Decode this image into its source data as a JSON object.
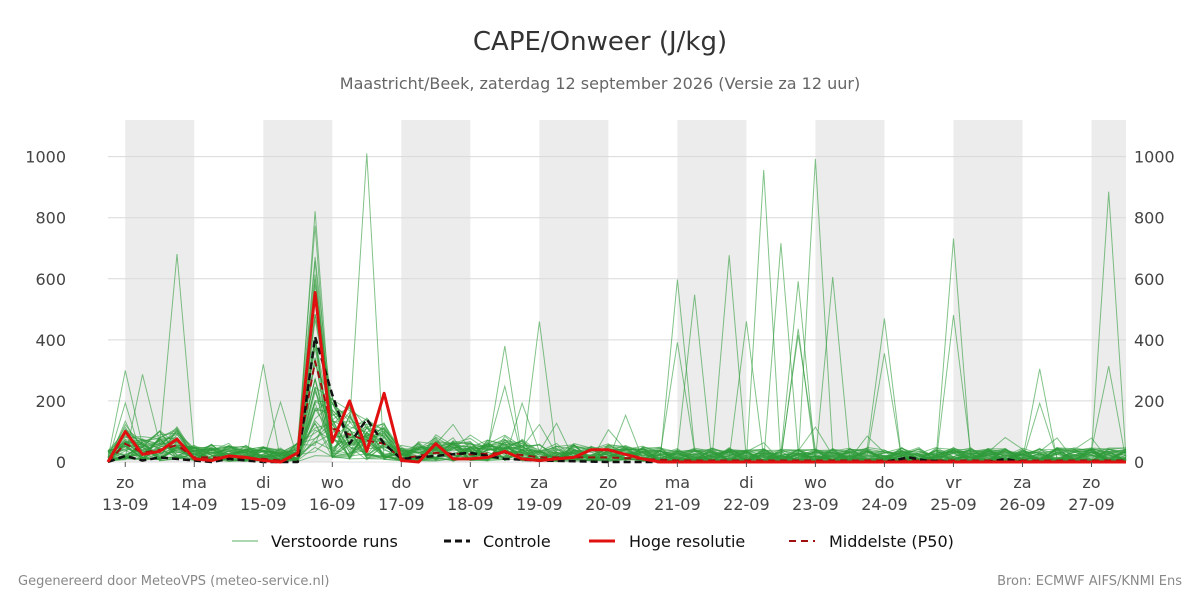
{
  "chart_data": {
    "type": "line",
    "title": "CAPE/Onweer (J/kg)",
    "subtitle": "Maastricht/Beek, zaterdag 12 september 2026 (Versie za 12 uur)",
    "xlabel": "",
    "ylabel": "",
    "ylim": [
      0,
      1120
    ],
    "y_ticks": [
      0,
      200,
      400,
      600,
      800,
      1000
    ],
    "y_axis_both_sides": true,
    "grid": true,
    "legend_position": "bottom",
    "x_ticks": [
      {
        "day": "zo",
        "date": "13-09"
      },
      {
        "day": "ma",
        "date": "14-09"
      },
      {
        "day": "di",
        "date": "15-09"
      },
      {
        "day": "wo",
        "date": "16-09"
      },
      {
        "day": "do",
        "date": "17-09"
      },
      {
        "day": "vr",
        "date": "18-09"
      },
      {
        "day": "za",
        "date": "19-09"
      },
      {
        "day": "zo",
        "date": "20-09"
      },
      {
        "day": "ma",
        "date": "21-09"
      },
      {
        "day": "di",
        "date": "22-09"
      },
      {
        "day": "wo",
        "date": "23-09"
      },
      {
        "day": "do",
        "date": "24-09"
      },
      {
        "day": "vr",
        "date": "25-09"
      },
      {
        "day": "za",
        "date": "26-09"
      },
      {
        "day": "zo",
        "date": "27-09"
      }
    ],
    "x_range_days": [
      -0.25,
      14.5
    ],
    "shaded_day_bands": [
      [
        0,
        1
      ],
      [
        2,
        3
      ],
      [
        4,
        5
      ],
      [
        6,
        7
      ],
      [
        8,
        9
      ],
      [
        10,
        11
      ],
      [
        12,
        13
      ],
      [
        14,
        14.5
      ]
    ],
    "colors": {
      "ensemble": "#2e9b3b",
      "control": "#111111",
      "high_res": "#e01010",
      "median": "#a01010",
      "band": "#ececec",
      "grid": "#d9d9d9"
    },
    "series": [
      {
        "name": "Hoge resolutie",
        "x": [
          -0.25,
          0,
          0.25,
          0.5,
          0.75,
          1,
          1.25,
          1.5,
          1.75,
          2,
          2.25,
          2.5,
          2.75,
          3,
          3.25,
          3.5,
          3.75,
          4,
          4.25,
          4.5,
          4.75,
          5,
          5.25,
          5.5,
          5.75,
          6,
          6.25,
          6.5,
          6.75,
          7,
          7.25,
          7.5,
          7.75,
          8,
          8.5,
          9,
          10,
          11,
          12,
          13,
          14,
          14.5
        ],
        "values": [
          0,
          100,
          25,
          35,
          75,
          10,
          5,
          20,
          15,
          5,
          0,
          30,
          555,
          65,
          200,
          35,
          225,
          5,
          0,
          60,
          10,
          10,
          15,
          35,
          10,
          5,
          10,
          15,
          40,
          40,
          25,
          10,
          0,
          0,
          0,
          0,
          0,
          0,
          0,
          0,
          0,
          0
        ]
      },
      {
        "name": "Controle",
        "x": [
          -0.25,
          0,
          0.25,
          0.5,
          0.75,
          1,
          1.25,
          1.5,
          1.75,
          2,
          2.25,
          2.5,
          2.75,
          3,
          3.25,
          3.5,
          3.75,
          4,
          4.5,
          5,
          5.5,
          6,
          7,
          8,
          9,
          10,
          11,
          11.35,
          11.6,
          12,
          12.5,
          12.75,
          13,
          14,
          14.5
        ],
        "values": [
          0,
          20,
          5,
          15,
          10,
          5,
          0,
          10,
          5,
          0,
          0,
          0,
          410,
          220,
          60,
          140,
          60,
          10,
          20,
          30,
          10,
          5,
          0,
          0,
          0,
          0,
          0,
          15,
          5,
          0,
          0,
          10,
          0,
          0,
          0
        ]
      },
      {
        "name": "Middelste (P50)",
        "x": [
          -0.25,
          0,
          0.25,
          0.5,
          0.75,
          1,
          1.5,
          2,
          2.25,
          2.5,
          2.75,
          3,
          3.25,
          3.5,
          3.75,
          4,
          4.5,
          5,
          5.5,
          6,
          7,
          8,
          9,
          10,
          11,
          12,
          13,
          14,
          14.5
        ],
        "values": [
          0,
          60,
          30,
          40,
          55,
          15,
          15,
          10,
          5,
          20,
          330,
          110,
          90,
          70,
          60,
          10,
          30,
          25,
          30,
          15,
          15,
          5,
          5,
          5,
          5,
          5,
          5,
          5,
          5
        ]
      }
    ],
    "ensemble_peaks": {
      "note_values_approx": [
        855,
        810,
        650,
        505,
        480,
        450,
        1110,
        870,
        845,
        725,
        1095,
        1020,
        920,
        880,
        565,
        500,
        470,
        415,
        320
      ]
    },
    "legend": [
      {
        "label": "Verstoorde runs",
        "style": "ensemble"
      },
      {
        "label": "Controle",
        "style": "control"
      },
      {
        "label": "Hoge resolutie",
        "style": "high_res"
      },
      {
        "label": "Middelste (P50)",
        "style": "median"
      }
    ],
    "footer_left": "Gegenereerd door MeteoVPS (meteo-service.nl)",
    "footer_right": "Bron: ECMWF AIFS/KNMI Ens"
  }
}
